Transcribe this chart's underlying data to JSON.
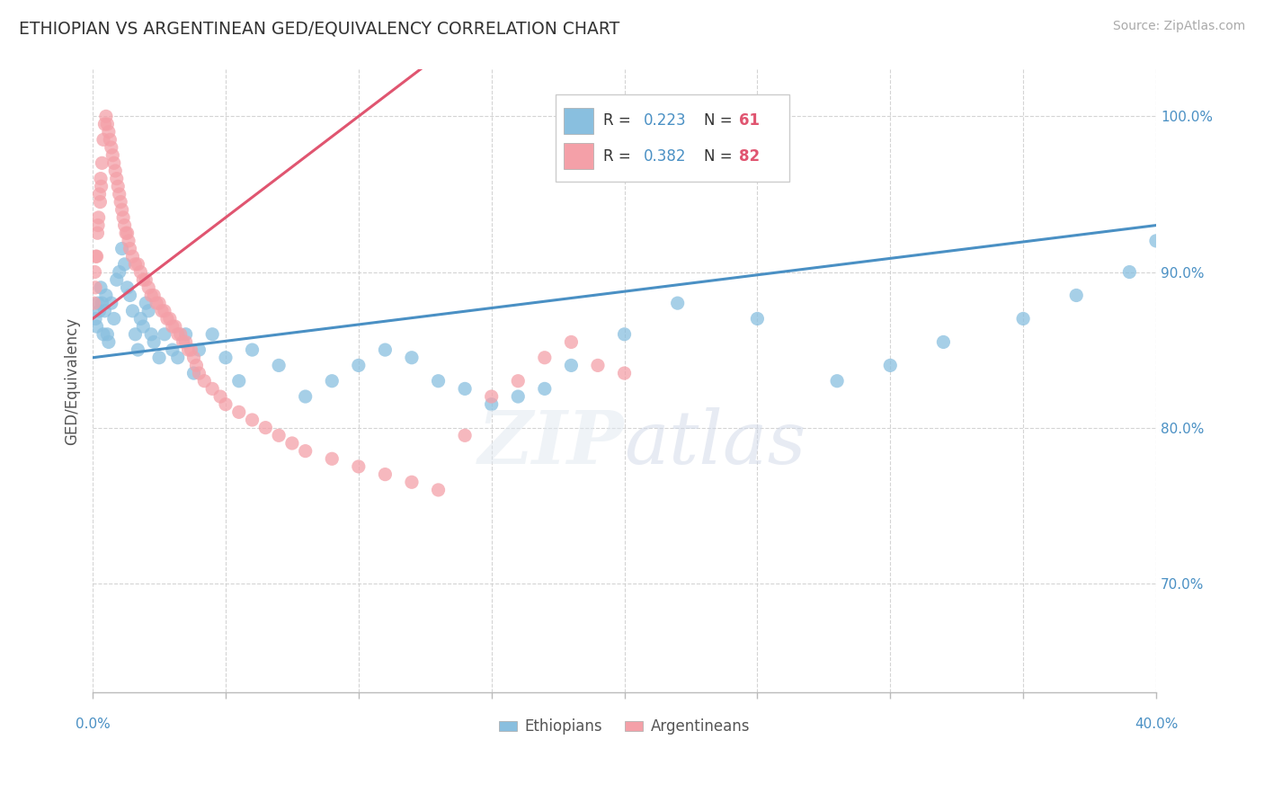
{
  "title": "ETHIOPIAN VS ARGENTINEAN GED/EQUIVALENCY CORRELATION CHART",
  "source": "Source: ZipAtlas.com",
  "xlim": [
    0.0,
    40.0
  ],
  "ylim": [
    63.0,
    103.0
  ],
  "yticks": [
    70.0,
    80.0,
    90.0,
    100.0
  ],
  "ylabel": "GED/Equivalency",
  "ethiopian_color": "#89bfdf",
  "argentinean_color": "#f4a0a8",
  "ethiopian_line_color": "#4a90c4",
  "argentinean_line_color": "#e05570",
  "ethiopian_R": 0.223,
  "ethiopian_N": 61,
  "argentinean_R": 0.382,
  "argentinean_N": 82,
  "legend_text_color": "#4a90c4",
  "legend_N_color": "#e05570",
  "yticklabel_color": "#4a90c4",
  "xticklabel_color": "#4a90c4",
  "ethiopians_x": [
    0.1,
    0.15,
    0.2,
    0.25,
    0.3,
    0.35,
    0.4,
    0.45,
    0.5,
    0.55,
    0.6,
    0.7,
    0.8,
    0.9,
    1.0,
    1.1,
    1.2,
    1.3,
    1.4,
    1.5,
    1.6,
    1.7,
    1.8,
    1.9,
    2.0,
    2.1,
    2.2,
    2.3,
    2.5,
    2.7,
    3.0,
    3.2,
    3.5,
    3.8,
    4.0,
    4.5,
    5.0,
    5.5,
    6.0,
    7.0,
    8.0,
    9.0,
    10.0,
    11.0,
    12.0,
    13.0,
    14.0,
    15.0,
    16.0,
    17.0,
    18.0,
    20.0,
    22.0,
    25.0,
    28.0,
    30.0,
    32.0,
    35.0,
    37.0,
    39.0,
    40.0
  ],
  "ethiopians_y": [
    87.0,
    86.5,
    88.0,
    87.5,
    89.0,
    88.0,
    86.0,
    87.5,
    88.5,
    86.0,
    85.5,
    88.0,
    87.0,
    89.5,
    90.0,
    91.5,
    90.5,
    89.0,
    88.5,
    87.5,
    86.0,
    85.0,
    87.0,
    86.5,
    88.0,
    87.5,
    86.0,
    85.5,
    84.5,
    86.0,
    85.0,
    84.5,
    86.0,
    83.5,
    85.0,
    86.0,
    84.5,
    83.0,
    85.0,
    84.0,
    82.0,
    83.0,
    84.0,
    85.0,
    84.5,
    83.0,
    82.5,
    81.5,
    82.0,
    82.5,
    84.0,
    86.0,
    88.0,
    87.0,
    83.0,
    84.0,
    85.5,
    87.0,
    88.5,
    90.0,
    92.0
  ],
  "argentineans_x": [
    0.05,
    0.1,
    0.15,
    0.2,
    0.25,
    0.3,
    0.35,
    0.4,
    0.45,
    0.5,
    0.55,
    0.6,
    0.65,
    0.7,
    0.75,
    0.8,
    0.85,
    0.9,
    0.95,
    1.0,
    1.05,
    1.1,
    1.15,
    1.2,
    1.25,
    1.3,
    1.35,
    1.4,
    1.5,
    1.6,
    1.7,
    1.8,
    1.9,
    2.0,
    2.1,
    2.2,
    2.3,
    2.4,
    2.5,
    2.6,
    2.7,
    2.8,
    2.9,
    3.0,
    3.1,
    3.2,
    3.3,
    3.4,
    3.5,
    3.6,
    3.7,
    3.8,
    3.9,
    4.0,
    4.2,
    4.5,
    4.8,
    5.0,
    5.5,
    6.0,
    6.5,
    7.0,
    7.5,
    8.0,
    9.0,
    10.0,
    11.0,
    12.0,
    13.0,
    14.0,
    15.0,
    16.0,
    17.0,
    18.0,
    19.0,
    20.0,
    0.08,
    0.12,
    0.18,
    0.22,
    0.28,
    0.32
  ],
  "argentineans_y": [
    88.0,
    89.0,
    91.0,
    93.0,
    95.0,
    96.0,
    97.0,
    98.5,
    99.5,
    100.0,
    99.5,
    99.0,
    98.5,
    98.0,
    97.5,
    97.0,
    96.5,
    96.0,
    95.5,
    95.0,
    94.5,
    94.0,
    93.5,
    93.0,
    92.5,
    92.5,
    92.0,
    91.5,
    91.0,
    90.5,
    90.5,
    90.0,
    89.5,
    89.5,
    89.0,
    88.5,
    88.5,
    88.0,
    88.0,
    87.5,
    87.5,
    87.0,
    87.0,
    86.5,
    86.5,
    86.0,
    86.0,
    85.5,
    85.5,
    85.0,
    85.0,
    84.5,
    84.0,
    83.5,
    83.0,
    82.5,
    82.0,
    81.5,
    81.0,
    80.5,
    80.0,
    79.5,
    79.0,
    78.5,
    78.0,
    77.5,
    77.0,
    76.5,
    76.0,
    79.5,
    82.0,
    83.0,
    84.5,
    85.5,
    84.0,
    83.5,
    90.0,
    91.0,
    92.5,
    93.5,
    94.5,
    95.5
  ]
}
